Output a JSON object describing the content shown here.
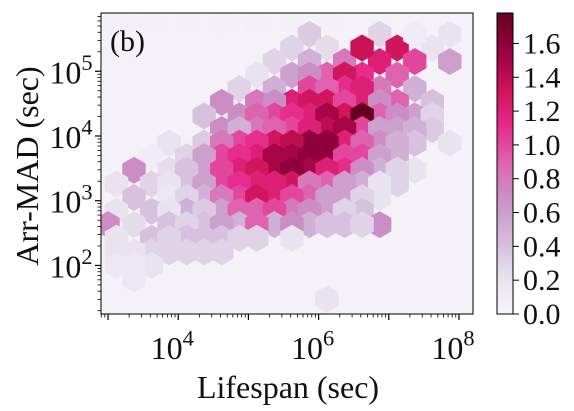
{
  "chart_data": {
    "type": "heatmap",
    "subtype": "hexbin",
    "panel_label": "(b)",
    "xlabel": "Lifespan (sec)",
    "ylabel": "Arr-MAD (sec)",
    "xscale": "log",
    "yscale": "log",
    "xlim_log10": [
      2.9,
      8.2
    ],
    "ylim_log10": [
      1.25,
      5.9
    ],
    "x_ticks": [
      {
        "base": "10",
        "exp": "4",
        "log10": 4
      },
      {
        "base": "10",
        "exp": "6",
        "log10": 6
      },
      {
        "base": "10",
        "exp": "8",
        "log10": 8
      }
    ],
    "y_ticks": [
      {
        "base": "10",
        "exp": "2",
        "log10": 2
      },
      {
        "base": "10",
        "exp": "3",
        "log10": 3
      },
      {
        "base": "10",
        "exp": "4",
        "log10": 4
      },
      {
        "base": "10",
        "exp": "5",
        "log10": 5
      }
    ],
    "colorbar": {
      "min": 0.0,
      "max": 1.78,
      "ticks": [
        "0.0",
        "0.2",
        "0.4",
        "0.6",
        "0.8",
        "1.0",
        "1.2",
        "1.4",
        "1.6"
      ],
      "colors": [
        "#f7f4f9",
        "#e7e1ef",
        "#d4b9da",
        "#c994c7",
        "#df65b0",
        "#e7298a",
        "#ce1256",
        "#980043",
        "#67001f"
      ]
    },
    "background_value": 0.03,
    "hex_grid": {
      "nx": 26,
      "nx_rows_odd": 26
    },
    "cells": [
      [
        3.12,
        5.78,
        0.05
      ],
      [
        3.62,
        5.78,
        0.05
      ],
      [
        4.12,
        5.78,
        0.05
      ],
      [
        4.62,
        5.78,
        0.05
      ],
      [
        5.12,
        5.78,
        0.05
      ],
      [
        5.62,
        5.78,
        0.05
      ],
      [
        6.12,
        5.78,
        0.05
      ],
      [
        5.87,
        5.57,
        0.35
      ],
      [
        6.87,
        5.57,
        0.3
      ],
      [
        5.62,
        5.36,
        0.3
      ],
      [
        6.12,
        5.36,
        0.25
      ],
      [
        6.62,
        5.36,
        0.2
      ],
      [
        7.12,
        5.36,
        1.3
      ],
      [
        7.62,
        5.36,
        0.2
      ],
      [
        7.87,
        5.57,
        0.2
      ],
      [
        7.37,
        5.57,
        0.1
      ],
      [
        5.37,
        5.15,
        0.3
      ],
      [
        5.87,
        5.15,
        0.5
      ],
      [
        6.37,
        5.15,
        0.8
      ],
      [
        6.87,
        5.15,
        1.2
      ],
      [
        7.37,
        5.15,
        1.0
      ],
      [
        7.87,
        5.15,
        0.6
      ],
      [
        6.62,
        5.36,
        1.35
      ],
      [
        5.12,
        4.94,
        0.2
      ],
      [
        5.62,
        4.94,
        0.6
      ],
      [
        6.12,
        4.94,
        0.9
      ],
      [
        6.62,
        4.94,
        1.1
      ],
      [
        7.12,
        4.94,
        0.9
      ],
      [
        6.37,
        4.94,
        1.3
      ],
      [
        5.87,
        4.94,
        0.7
      ],
      [
        4.87,
        4.73,
        0.3
      ],
      [
        5.37,
        4.73,
        0.5
      ],
      [
        5.87,
        4.73,
        1.0
      ],
      [
        6.37,
        4.73,
        1.1
      ],
      [
        6.87,
        4.73,
        0.8
      ],
      [
        7.37,
        4.73,
        0.5
      ],
      [
        6.12,
        4.73,
        0.9
      ],
      [
        6.62,
        4.73,
        1.2
      ],
      [
        4.62,
        4.52,
        0.7
      ],
      [
        5.12,
        4.52,
        0.8
      ],
      [
        5.62,
        4.52,
        1.2
      ],
      [
        6.12,
        4.52,
        1.3
      ],
      [
        6.62,
        4.52,
        1.2
      ],
      [
        7.12,
        4.52,
        0.9
      ],
      [
        7.62,
        4.52,
        0.4
      ],
      [
        5.37,
        4.52,
        0.7
      ],
      [
        5.87,
        4.52,
        1.3
      ],
      [
        6.37,
        4.52,
        1.0
      ],
      [
        6.87,
        4.52,
        0.7
      ],
      [
        4.37,
        4.31,
        0.4
      ],
      [
        4.87,
        4.31,
        0.7
      ],
      [
        5.37,
        4.31,
        1.0
      ],
      [
        5.87,
        4.31,
        1.2
      ],
      [
        6.37,
        4.31,
        1.3
      ],
      [
        6.87,
        4.31,
        0.9
      ],
      [
        7.37,
        4.31,
        0.6
      ],
      [
        5.12,
        4.31,
        0.9
      ],
      [
        5.62,
        4.31,
        1.1
      ],
      [
        6.12,
        4.31,
        1.5
      ],
      [
        6.62,
        4.31,
        1.78
      ],
      [
        7.12,
        4.31,
        0.7
      ],
      [
        7.62,
        4.31,
        0.3
      ],
      [
        4.62,
        4.1,
        0.7
      ],
      [
        5.12,
        4.1,
        0.8
      ],
      [
        5.62,
        4.1,
        1.0
      ],
      [
        6.12,
        4.1,
        1.4
      ],
      [
        6.62,
        4.1,
        1.0
      ],
      [
        7.12,
        4.1,
        0.6
      ],
      [
        7.62,
        4.1,
        0.35
      ],
      [
        4.87,
        4.1,
        0.5
      ],
      [
        5.37,
        4.1,
        0.9
      ],
      [
        5.87,
        4.1,
        1.2
      ],
      [
        6.37,
        4.1,
        1.5
      ],
      [
        6.87,
        4.1,
        0.6
      ],
      [
        7.37,
        4.1,
        0.5
      ],
      [
        3.87,
        3.89,
        0.2
      ],
      [
        4.37,
        3.89,
        0.35
      ],
      [
        4.87,
        3.89,
        1.0
      ],
      [
        5.37,
        3.89,
        1.3
      ],
      [
        5.87,
        3.89,
        1.6
      ],
      [
        6.37,
        3.89,
        1.2
      ],
      [
        6.87,
        3.89,
        0.7
      ],
      [
        7.37,
        3.89,
        0.4
      ],
      [
        7.87,
        3.89,
        0.2
      ],
      [
        4.62,
        3.89,
        0.8
      ],
      [
        5.12,
        3.89,
        1.1
      ],
      [
        5.62,
        3.89,
        1.4
      ],
      [
        6.12,
        3.89,
        1.6
      ],
      [
        6.62,
        3.89,
        0.9
      ],
      [
        7.12,
        3.89,
        0.5
      ],
      [
        3.62,
        3.68,
        0.1
      ],
      [
        4.12,
        3.68,
        0.3
      ],
      [
        4.62,
        3.68,
        1.0
      ],
      [
        5.12,
        3.68,
        1.2
      ],
      [
        5.62,
        3.68,
        1.5
      ],
      [
        6.12,
        3.68,
        1.6
      ],
      [
        6.62,
        3.68,
        1.0
      ],
      [
        7.12,
        3.68,
        0.5
      ],
      [
        4.37,
        3.68,
        0.6
      ],
      [
        4.87,
        3.68,
        1.1
      ],
      [
        5.37,
        3.68,
        1.5
      ],
      [
        5.87,
        3.68,
        1.6
      ],
      [
        6.37,
        3.68,
        1.0
      ],
      [
        6.87,
        3.68,
        0.6
      ],
      [
        3.37,
        3.47,
        0.7
      ],
      [
        3.87,
        3.47,
        0.25
      ],
      [
        4.37,
        3.47,
        0.6
      ],
      [
        4.87,
        3.47,
        1.2
      ],
      [
        5.37,
        3.47,
        1.5
      ],
      [
        5.87,
        3.47,
        1.5
      ],
      [
        6.37,
        3.47,
        1.1
      ],
      [
        6.87,
        3.47,
        0.5
      ],
      [
        7.37,
        3.47,
        0.2
      ],
      [
        4.12,
        3.47,
        0.4
      ],
      [
        4.62,
        3.47,
        1.0
      ],
      [
        5.12,
        3.47,
        1.3
      ],
      [
        5.62,
        3.47,
        1.6
      ],
      [
        6.12,
        3.47,
        1.2
      ],
      [
        6.62,
        3.47,
        0.7
      ],
      [
        7.12,
        3.47,
        0.3
      ],
      [
        3.12,
        3.26,
        0.2
      ],
      [
        3.62,
        3.26,
        0.3
      ],
      [
        4.12,
        3.26,
        0.4
      ],
      [
        4.62,
        3.26,
        1.0
      ],
      [
        5.12,
        3.26,
        1.2
      ],
      [
        5.62,
        3.26,
        1.3
      ],
      [
        6.12,
        3.26,
        0.9
      ],
      [
        6.62,
        3.26,
        0.5
      ],
      [
        7.12,
        3.26,
        0.3
      ],
      [
        3.87,
        3.26,
        0.2
      ],
      [
        4.37,
        3.26,
        0.6
      ],
      [
        4.87,
        3.26,
        1.1
      ],
      [
        5.37,
        3.26,
        1.2
      ],
      [
        5.87,
        3.26,
        0.8
      ],
      [
        6.37,
        3.26,
        0.6
      ],
      [
        6.87,
        3.26,
        0.2
      ],
      [
        3.37,
        3.05,
        0.4
      ],
      [
        3.87,
        3.05,
        0.15
      ],
      [
        4.37,
        3.05,
        0.5
      ],
      [
        4.87,
        3.05,
        1.0
      ],
      [
        5.37,
        3.05,
        1.2
      ],
      [
        5.87,
        3.05,
        0.9
      ],
      [
        6.37,
        3.05,
        0.6
      ],
      [
        6.87,
        3.05,
        0.2
      ],
      [
        4.12,
        3.05,
        0.3
      ],
      [
        4.62,
        3.05,
        0.8
      ],
      [
        5.12,
        3.05,
        1.3
      ],
      [
        5.62,
        3.05,
        1.0
      ],
      [
        6.12,
        3.05,
        0.6
      ],
      [
        6.62,
        3.05,
        0.3
      ],
      [
        3.12,
        2.84,
        0.2
      ],
      [
        3.62,
        2.84,
        0.4
      ],
      [
        4.12,
        2.84,
        0.5
      ],
      [
        4.62,
        2.84,
        0.6
      ],
      [
        5.12,
        2.84,
        0.9
      ],
      [
        5.62,
        2.84,
        0.8
      ],
      [
        6.12,
        2.84,
        0.6
      ],
      [
        6.62,
        2.84,
        0.4
      ],
      [
        3.87,
        2.84,
        0.2
      ],
      [
        4.37,
        2.84,
        0.35
      ],
      [
        4.87,
        2.84,
        0.9
      ],
      [
        5.37,
        2.84,
        1.0
      ],
      [
        5.87,
        2.84,
        0.7
      ],
      [
        6.37,
        2.84,
        0.3
      ],
      [
        3.0,
        2.63,
        0.7
      ],
      [
        3.37,
        2.63,
        0.25
      ],
      [
        3.87,
        2.63,
        0.4
      ],
      [
        4.37,
        2.63,
        0.4
      ],
      [
        4.87,
        2.63,
        0.5
      ],
      [
        5.37,
        2.63,
        0.5
      ],
      [
        5.87,
        2.63,
        0.5
      ],
      [
        6.37,
        2.63,
        0.4
      ],
      [
        6.87,
        2.63,
        0.7
      ],
      [
        4.12,
        2.63,
        0.3
      ],
      [
        4.62,
        2.63,
        0.6
      ],
      [
        5.12,
        2.63,
        0.9
      ],
      [
        5.62,
        2.63,
        0.7
      ],
      [
        6.12,
        2.63,
        0.4
      ],
      [
        6.62,
        2.63,
        0.3
      ],
      [
        3.12,
        2.42,
        0.2
      ],
      [
        3.62,
        2.42,
        0.4
      ],
      [
        4.12,
        2.42,
        0.4
      ],
      [
        4.62,
        2.42,
        0.4
      ],
      [
        5.12,
        2.42,
        0.3
      ],
      [
        5.62,
        2.42,
        0.2
      ],
      [
        3.87,
        2.42,
        0.3
      ],
      [
        4.37,
        2.42,
        0.4
      ],
      [
        4.87,
        2.42,
        0.3
      ],
      [
        3.12,
        2.21,
        0.2
      ],
      [
        3.62,
        2.21,
        0.3
      ],
      [
        4.12,
        2.21,
        0.3
      ],
      [
        4.62,
        2.21,
        0.3
      ],
      [
        3.37,
        2.21,
        0.2
      ],
      [
        3.87,
        2.21,
        0.3
      ],
      [
        4.37,
        2.21,
        0.3
      ],
      [
        3.12,
        2.0,
        0.15
      ],
      [
        3.62,
        2.0,
        0.2
      ],
      [
        3.37,
        2.0,
        0.15
      ],
      [
        3.37,
        1.79,
        0.15
      ],
      [
        6.12,
        1.48,
        0.2
      ]
    ]
  }
}
